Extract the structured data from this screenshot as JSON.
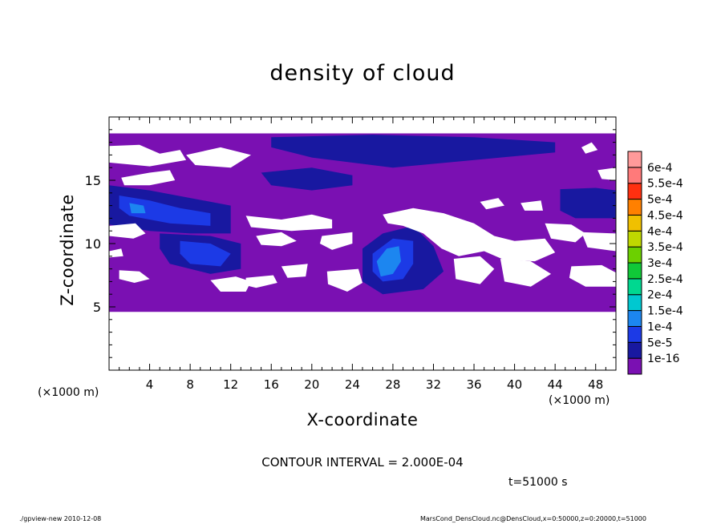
{
  "chart_data": {
    "type": "heatmap",
    "title": "density of cloud",
    "xlabel": "X-coordinate",
    "ylabel": "Z-coordinate",
    "x_unit": "(×1000 m)",
    "xlim": [
      0,
      50
    ],
    "ylim": [
      0,
      20
    ],
    "x_ticks": [
      4,
      8,
      12,
      16,
      20,
      24,
      28,
      32,
      36,
      40,
      44,
      48
    ],
    "y_ticks": [
      5,
      10,
      15
    ],
    "colorbar": {
      "labels": [
        "1e-16",
        "5e-5",
        "1e-4",
        "1.5e-4",
        "2e-4",
        "2.5e-4",
        "3e-4",
        "3.5e-4",
        "4e-4",
        "4.5e-4",
        "5e-4",
        "5.5e-4",
        "6e-4"
      ],
      "colors": [
        "#7a10b2",
        "#1818a0",
        "#1c3ae6",
        "#1c86f0",
        "#00c8d0",
        "#00d890",
        "#10c838",
        "#6cd000",
        "#c0d800",
        "#f0c000",
        "#ff8000",
        "#ff3010",
        "#ff7a7a",
        "#ff9a9a"
      ]
    },
    "contour_interval": "CONTOUR INTERVAL = 2.000E-04",
    "time_label": "t=51000 s",
    "cloud_regions": [
      {
        "level": 0,
        "polygon": [
          [
            0,
            18.7
          ],
          [
            50,
            18.7
          ],
          [
            50,
            4.6
          ],
          [
            0,
            4.6
          ]
        ]
      },
      {
        "level": 1,
        "polygon": [
          [
            16,
            18.4
          ],
          [
            26,
            18.6
          ],
          [
            36,
            18.4
          ],
          [
            44,
            18.0
          ],
          [
            44,
            17.2
          ],
          [
            36,
            16.6
          ],
          [
            28,
            16.0
          ],
          [
            20,
            16.8
          ],
          [
            16,
            17.6
          ]
        ]
      },
      {
        "level": 1,
        "polygon": [
          [
            0,
            14.6
          ],
          [
            4,
            14.2
          ],
          [
            8,
            13.6
          ],
          [
            12,
            13.0
          ],
          [
            12,
            10.8
          ],
          [
            8,
            10.8
          ],
          [
            4,
            11.0
          ],
          [
            0,
            11.5
          ]
        ]
      },
      {
        "level": 1,
        "polygon": [
          [
            5,
            10.8
          ],
          [
            10,
            10.6
          ],
          [
            13,
            10.0
          ],
          [
            13,
            8.0
          ],
          [
            10,
            7.6
          ],
          [
            6,
            8.4
          ],
          [
            5,
            9.6
          ]
        ]
      },
      {
        "level": 1,
        "polygon": [
          [
            25,
            9.6
          ],
          [
            27,
            10.8
          ],
          [
            30,
            11.4
          ],
          [
            32,
            9.8
          ],
          [
            33,
            7.8
          ],
          [
            31,
            6.4
          ],
          [
            27,
            6.0
          ],
          [
            25,
            7.0
          ]
        ]
      },
      {
        "level": 1,
        "polygon": [
          [
            44.5,
            14.3
          ],
          [
            48,
            14.4
          ],
          [
            50,
            14.2
          ],
          [
            50,
            12.0
          ],
          [
            46,
            12.0
          ],
          [
            44.5,
            12.6
          ]
        ]
      },
      {
        "level": 1,
        "polygon": [
          [
            15,
            15.6
          ],
          [
            20,
            16.0
          ],
          [
            24,
            15.4
          ],
          [
            24,
            14.6
          ],
          [
            20,
            14.2
          ],
          [
            16,
            14.6
          ]
        ]
      },
      {
        "level": 2,
        "polygon": [
          [
            1,
            13.8
          ],
          [
            4,
            13.4
          ],
          [
            7,
            12.8
          ],
          [
            10,
            12.4
          ],
          [
            10,
            11.4
          ],
          [
            6,
            11.6
          ],
          [
            2,
            12.2
          ],
          [
            1,
            12.8
          ]
        ]
      },
      {
        "level": 2,
        "polygon": [
          [
            26,
            9.2
          ],
          [
            28,
            10.4
          ],
          [
            30,
            10.2
          ],
          [
            30,
            8.4
          ],
          [
            29,
            7.2
          ],
          [
            27,
            7.0
          ],
          [
            26,
            7.8
          ]
        ]
      },
      {
        "level": 2,
        "polygon": [
          [
            7,
            10.2
          ],
          [
            10,
            10.0
          ],
          [
            12,
            9.2
          ],
          [
            11,
            8.2
          ],
          [
            8,
            8.4
          ],
          [
            7,
            9.2
          ]
        ]
      },
      {
        "level": 3,
        "polygon": [
          [
            26.4,
            8.6
          ],
          [
            27.4,
            9.6
          ],
          [
            28.6,
            9.8
          ],
          [
            28.8,
            8.6
          ],
          [
            28.0,
            7.6
          ],
          [
            26.8,
            7.4
          ]
        ]
      },
      {
        "level": 3,
        "polygon": [
          [
            2,
            13.2
          ],
          [
            3.4,
            13.0
          ],
          [
            3.6,
            12.4
          ],
          [
            2.2,
            12.4
          ]
        ]
      }
    ],
    "clear_regions": [
      {
        "polygon": [
          [
            0,
            17.7
          ],
          [
            3,
            17.8
          ],
          [
            5,
            17.1
          ],
          [
            7,
            17.4
          ],
          [
            7.6,
            16.6
          ],
          [
            4,
            16.1
          ],
          [
            0,
            16.4
          ]
        ]
      },
      {
        "polygon": [
          [
            7.6,
            17.0
          ],
          [
            11,
            17.6
          ],
          [
            14,
            17.0
          ],
          [
            12,
            16.0
          ],
          [
            8.5,
            16.2
          ]
        ]
      },
      {
        "polygon": [
          [
            1.2,
            15.2
          ],
          [
            4,
            15.6
          ],
          [
            6,
            15.8
          ],
          [
            6.5,
            15.0
          ],
          [
            4,
            14.6
          ],
          [
            1.5,
            14.6
          ]
        ]
      },
      {
        "polygon": [
          [
            0,
            11.4
          ],
          [
            2.6,
            11.6
          ],
          [
            3.6,
            10.8
          ],
          [
            2.4,
            10.4
          ],
          [
            0,
            10.6
          ]
        ]
      },
      {
        "polygon": [
          [
            0,
            9.4
          ],
          [
            1.2,
            9.6
          ],
          [
            1.4,
            9.0
          ],
          [
            0,
            8.9
          ]
        ]
      },
      {
        "polygon": [
          [
            1.0,
            7.9
          ],
          [
            3,
            7.8
          ],
          [
            4,
            7.2
          ],
          [
            2.5,
            6.9
          ],
          [
            1.0,
            7.2
          ]
        ]
      },
      {
        "polygon": [
          [
            13.5,
            12.2
          ],
          [
            17,
            11.9
          ],
          [
            20,
            12.3
          ],
          [
            22,
            11.9
          ],
          [
            22,
            11.2
          ],
          [
            18,
            11.0
          ],
          [
            14,
            11.3
          ]
        ]
      },
      {
        "polygon": [
          [
            21,
            10.6
          ],
          [
            24,
            10.9
          ],
          [
            24,
            10.0
          ],
          [
            22,
            9.5
          ],
          [
            20.8,
            10.0
          ]
        ]
      },
      {
        "polygon": [
          [
            14.5,
            10.6
          ],
          [
            17,
            10.9
          ],
          [
            18.5,
            10.2
          ],
          [
            17,
            9.8
          ],
          [
            15,
            9.9
          ]
        ]
      },
      {
        "polygon": [
          [
            17,
            8.2
          ],
          [
            19.6,
            8.4
          ],
          [
            19.4,
            7.4
          ],
          [
            17.6,
            7.3
          ]
        ]
      },
      {
        "polygon": [
          [
            13.5,
            7.3
          ],
          [
            16.2,
            7.5
          ],
          [
            16.6,
            6.9
          ],
          [
            14.5,
            6.5
          ],
          [
            13.5,
            6.7
          ]
        ]
      },
      {
        "polygon": [
          [
            10,
            7.1
          ],
          [
            12.5,
            7.4
          ],
          [
            14,
            7.0
          ],
          [
            13.5,
            6.2
          ],
          [
            11,
            6.2
          ]
        ]
      },
      {
        "polygon": [
          [
            21.5,
            7.8
          ],
          [
            24.6,
            8.0
          ],
          [
            25,
            6.9
          ],
          [
            23.5,
            6.2
          ],
          [
            21.6,
            6.8
          ]
        ]
      },
      {
        "polygon": [
          [
            27,
            12.3
          ],
          [
            30,
            12.8
          ],
          [
            33,
            12.4
          ],
          [
            36,
            11.6
          ],
          [
            38,
            10.6
          ],
          [
            40,
            10.2
          ],
          [
            43,
            10.4
          ],
          [
            44,
            9.3
          ],
          [
            42,
            8.6
          ],
          [
            39,
            8.7
          ],
          [
            37,
            9.4
          ],
          [
            34.5,
            9.0
          ],
          [
            32.8,
            9.6
          ],
          [
            31,
            10.8
          ],
          [
            29,
            11.4
          ],
          [
            27.5,
            11.6
          ]
        ]
      },
      {
        "polygon": [
          [
            34,
            8.8
          ],
          [
            36.6,
            9.0
          ],
          [
            38,
            8.0
          ],
          [
            36.6,
            6.8
          ],
          [
            34.2,
            7.2
          ]
        ]
      },
      {
        "polygon": [
          [
            38.6,
            8.8
          ],
          [
            41.6,
            8.6
          ],
          [
            43.6,
            7.6
          ],
          [
            41.6,
            6.6
          ],
          [
            39,
            7.0
          ]
        ]
      },
      {
        "polygon": [
          [
            43,
            11.6
          ],
          [
            45.6,
            11.5
          ],
          [
            47,
            10.8
          ],
          [
            46,
            10.1
          ],
          [
            43.6,
            10.4
          ]
        ]
      },
      {
        "polygon": [
          [
            46.6,
            10.9
          ],
          [
            50,
            10.8
          ],
          [
            50,
            9.4
          ],
          [
            47.2,
            9.7
          ]
        ]
      },
      {
        "polygon": [
          [
            45.6,
            8.2
          ],
          [
            48.6,
            8.3
          ],
          [
            50,
            7.7
          ],
          [
            50,
            6.6
          ],
          [
            47,
            6.6
          ],
          [
            45.4,
            7.3
          ]
        ]
      },
      {
        "polygon": [
          [
            46.6,
            17.6
          ],
          [
            47.6,
            18.0
          ],
          [
            48.2,
            17.4
          ],
          [
            47.0,
            17.1
          ]
        ]
      },
      {
        "polygon": [
          [
            48.2,
            15.8
          ],
          [
            50,
            16.0
          ],
          [
            50,
            15.0
          ],
          [
            48.6,
            15.1
          ]
        ]
      },
      {
        "polygon": [
          [
            36.6,
            13.3
          ],
          [
            38.4,
            13.6
          ],
          [
            39.0,
            13.0
          ],
          [
            37.2,
            12.7
          ]
        ]
      },
      {
        "polygon": [
          [
            40.6,
            13.2
          ],
          [
            42.6,
            13.4
          ],
          [
            42.8,
            12.6
          ],
          [
            41.0,
            12.6
          ]
        ]
      }
    ]
  },
  "footer": {
    "left": "./gpview-new  2010-12-08",
    "right": "MarsCond_DensCloud.nc@DensCloud,x=0:50000,z=0:20000,t=51000"
  }
}
